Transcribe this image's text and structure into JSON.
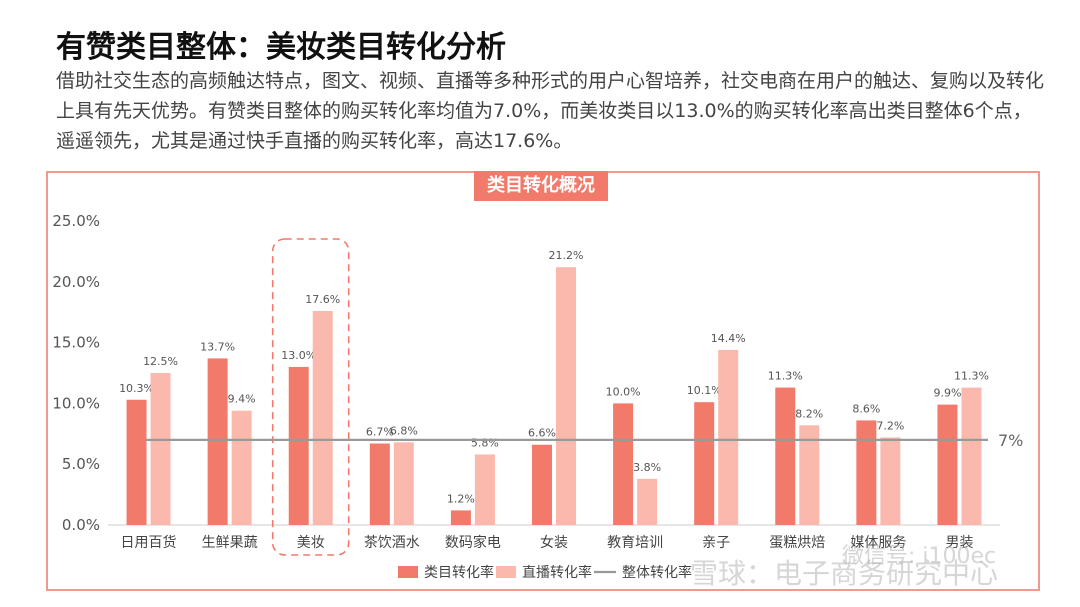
{
  "header": {
    "title": "有赞类目整体：美妆类目转化分析",
    "paragraph": "借助社交生态的高频触达特点，图文、视频、直播等多种形式的用户心智培养，社交电商在用户的触达、复购以及转化上具有先天优势。有赞类目整体的购买转化率均值为7.0%，而美妆类目以13.0%的购买转化率高出类目整体6个点，遥遥领先，尤其是通过快手直播的购买转化率，高达17.6%。"
  },
  "chart_data": {
    "type": "bar",
    "title": "类目转化概况",
    "categories": [
      "日用百货",
      "生鲜果蔬",
      "美妆",
      "茶饮酒水",
      "数码家电",
      "女装",
      "教育培训",
      "亲子",
      "蛋糕烘焙",
      "媒体服务",
      "男装"
    ],
    "series": [
      {
        "name": "类目转化率",
        "values": [
          10.3,
          13.7,
          13.0,
          6.7,
          1.2,
          6.6,
          10.0,
          10.1,
          11.3,
          8.6,
          9.9
        ],
        "labels": [
          "10.3%",
          "13.7%",
          "13.0%",
          "6.7%",
          "1.2%",
          "6.6%",
          "10.0%",
          "10.1%",
          "11.3%",
          "8.6%",
          "9.9%"
        ],
        "color": "#f27a6a"
      },
      {
        "name": "直播转化率",
        "values": [
          12.5,
          9.4,
          17.6,
          6.8,
          5.8,
          21.2,
          3.8,
          14.4,
          8.2,
          7.2,
          11.3
        ],
        "labels": [
          "12.5%",
          "9.4%",
          "17.6%",
          "6.8%",
          "5.8%",
          "21.2%",
          "3.8%",
          "14.4%",
          "8.2%",
          "7.2%",
          "11.3%"
        ],
        "color": "#fbb9ae"
      }
    ],
    "reference_line": {
      "name": "整体转化率",
      "value": 7,
      "label": "7%",
      "color": "#999999"
    },
    "ylim": [
      0,
      25
    ],
    "yticks": [
      "0.0%",
      "5.0%",
      "10.0%",
      "15.0%",
      "20.0%",
      "25.0%"
    ],
    "highlight_category": "美妆",
    "legend_position": "bottom"
  },
  "watermark": {
    "main": "雪球：电子商务研究中心",
    "sub": "微信号: i100ec"
  }
}
